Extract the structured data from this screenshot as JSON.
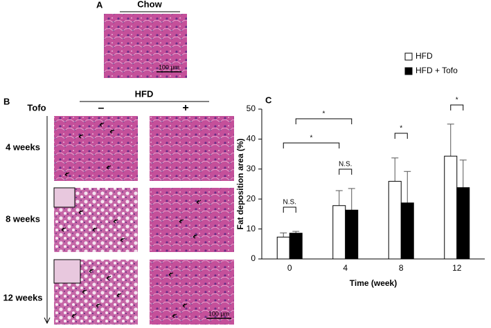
{
  "panel_a": {
    "label": "A",
    "title": "Chow",
    "scale_bar": "100 μm"
  },
  "panel_b": {
    "label": "B",
    "title": "HFD",
    "factor": "Tofo",
    "levels": [
      "–",
      "+"
    ],
    "rows": [
      "4 weeks",
      "8 weeks",
      "12 weeks"
    ],
    "scale_bar": "100 μm"
  },
  "panel_c_label": "C",
  "chart_data": {
    "type": "bar",
    "xlabel": "Time (week)",
    "ylabel": "Fat deposition area (%)",
    "categories": [
      "0",
      "4",
      "8",
      "12"
    ],
    "series": [
      {
        "name": "HFD",
        "color": "#ffffff",
        "values": [
          7.3,
          17.8,
          25.9,
          34.3
        ],
        "errors": [
          1.4,
          5.0,
          7.8,
          10.7
        ]
      },
      {
        "name": "HFD + Tofo",
        "color": "#000000",
        "values": [
          8.6,
          16.3,
          18.7,
          23.8
        ],
        "errors": [
          0.6,
          7.2,
          10.5,
          9.2
        ]
      }
    ],
    "ylim": [
      0,
      50
    ],
    "yticks": [
      0,
      10,
      20,
      30,
      40,
      50
    ],
    "legend": "upper right",
    "annotations": [
      "N.S.",
      "N.S.",
      "*",
      "*",
      "*",
      "*"
    ]
  }
}
